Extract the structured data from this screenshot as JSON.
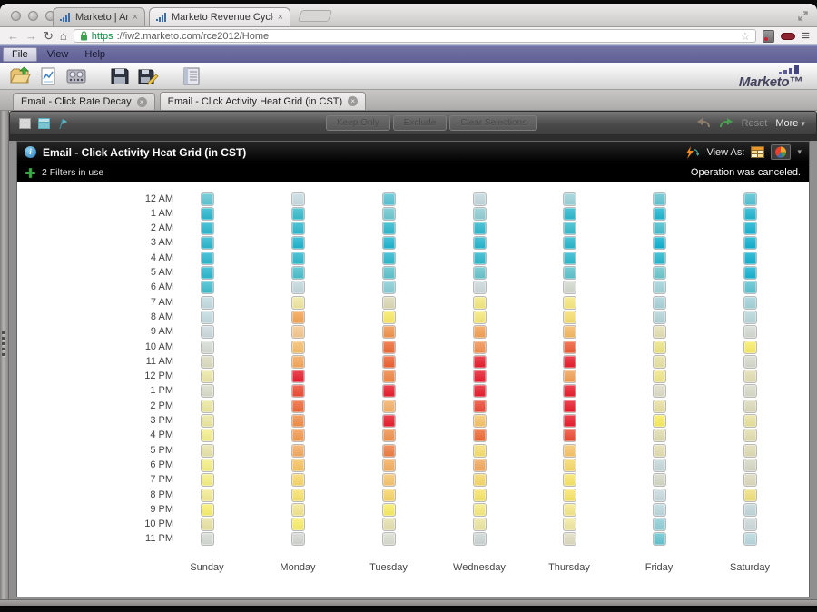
{
  "icons": {
    "back": "←",
    "forward": "→",
    "reload": "↻",
    "home": "⌂",
    "star": "☆",
    "hamburger": "≡",
    "tab_close": "×",
    "doc_close": "×",
    "chevron_down": "▾",
    "resize": "⤢",
    "info": "i"
  },
  "browser": {
    "tabs": [
      {
        "title": "Marketo | Analytics",
        "active": false
      },
      {
        "title": "Marketo Revenue Cycle Ex",
        "active": true
      }
    ],
    "address": {
      "scheme": "https",
      "rest": "://iw2.marketo.com/rce2012/Home"
    }
  },
  "menu_bar": {
    "items": [
      "File",
      "View",
      "Help"
    ]
  },
  "app_toolbar": {
    "brand": "Marketo™"
  },
  "doc_tabs": [
    {
      "label": "Email - Click Rate Decay",
      "active": false
    },
    {
      "label": "Email - Click Activity Heat Grid (in CST)",
      "active": true
    }
  ],
  "action_bar": {
    "disabled_buttons": [
      "Keep Only",
      "Exclude",
      "Clear Selections"
    ],
    "reset": "Reset",
    "more": "More"
  },
  "report": {
    "title": "Email - Click Activity Heat Grid (in CST)",
    "view_as": "View As:",
    "filters": "2 Filters in use",
    "status": "Operation was canceled."
  },
  "chart_data": {
    "type": "heatmap",
    "title": "Email - Click Activity Heat Grid (in CST)",
    "x_categories": [
      "Sunday",
      "Monday",
      "Tuesday",
      "Wednesday",
      "Thursday",
      "Friday",
      "Saturday"
    ],
    "y_categories": [
      "12 AM",
      "1 AM",
      "2 AM",
      "3 AM",
      "4 AM",
      "5 AM",
      "6 AM",
      "7 AM",
      "8 AM",
      "9 AM",
      "10 AM",
      "11 AM",
      "12 PM",
      "1 PM",
      "2 PM",
      "3 PM",
      "4 PM",
      "5 PM",
      "6 PM",
      "7 PM",
      "8 PM",
      "9 PM",
      "10 PM",
      "11 PM"
    ],
    "value_encoding": "color only; cyan = low click activity, yellow/orange = medium, red = high",
    "color_scale": {
      "low": "#0fb0d0",
      "mid": "#f8ec66",
      "high": "#e81c2c"
    },
    "legend_position": "none",
    "series": [
      {
        "name": "Sunday",
        "cell_colors": [
          "#5fc6d2",
          "#29b7cf",
          "#29b7cf",
          "#29b7cf",
          "#29b7cf",
          "#29b7cf",
          "#3fbdce",
          "#c3dbe0",
          "#c3dbe0",
          "#ccdadd",
          "#d6dcd4",
          "#dcdcc2",
          "#ebe7a6",
          "#dadcca",
          "#ece8a0",
          "#ece8a0",
          "#f4ee8c",
          "#e8e4aa",
          "#f5ef86",
          "#f5ef86",
          "#f3eb92",
          "#f8ef70",
          "#e7e2a2",
          "#d5dcd4"
        ]
      },
      {
        "name": "Monday",
        "cell_colors": [
          "#c7dce1",
          "#38bbcd",
          "#2bb8cd",
          "#1db4cf",
          "#2bb8cd",
          "#4abfcc",
          "#c2d8dc",
          "#efe7a0",
          "#f4a351",
          "#f5c78e",
          "#f6bf6c",
          "#f4a75a",
          "#e81c2c",
          "#ee4b33",
          "#ef6838",
          "#f28f48",
          "#f39950",
          "#f4ab60",
          "#f7c360",
          "#f8d86c",
          "#f8e26c",
          "#f3e68e",
          "#f8ed68",
          "#d4d6d2"
        ]
      },
      {
        "name": "Tuesday",
        "cell_colors": [
          "#58c3d3",
          "#6ec7cf",
          "#2bb8cd",
          "#1db4cf",
          "#2bb8cd",
          "#5cc2cc",
          "#86cdd4",
          "#dcd8b4",
          "#f8e962",
          "#f0934c",
          "#ee6a35",
          "#ed6131",
          "#f08542",
          "#e81c2c",
          "#f4b169",
          "#e81c2c",
          "#f0914c",
          "#ee7e42",
          "#f4ae5e",
          "#f6c470",
          "#f8d468",
          "#f8ec66",
          "#e4e0ae",
          "#d9ddd0"
        ]
      },
      {
        "name": "Wednesday",
        "cell_colors": [
          "#c2d8dd",
          "#90cdd3",
          "#2bb8cd",
          "#25b6cd",
          "#2bb8cd",
          "#68c4cc",
          "#ccd8da",
          "#f4e87e",
          "#f6e878",
          "#f3a052",
          "#f29150",
          "#e81c2c",
          "#e81c2c",
          "#e81c2c",
          "#ec4934",
          "#f6c468",
          "#ee6934",
          "#f6de6e",
          "#f2a85c",
          "#f6d86a",
          "#f8e468",
          "#f6ea7e",
          "#ece5a0",
          "#ccd6d4"
        ]
      },
      {
        "name": "Thursday",
        "cell_colors": [
          "#9ad2d8",
          "#2bb8cd",
          "#35bbcc",
          "#25b6cd",
          "#2bb8cd",
          "#5cc2cc",
          "#d2d8ce",
          "#f6e87e",
          "#f6de6e",
          "#f4b862",
          "#ee5c36",
          "#e81c2c",
          "#f0a054",
          "#e81c2c",
          "#e81c2c",
          "#e81c2c",
          "#ec4934",
          "#f6c468",
          "#f6d86a",
          "#f8e468",
          "#f8e468",
          "#f4e88a",
          "#f0e8a0",
          "#dedcc0"
        ]
      },
      {
        "name": "Friday",
        "cell_colors": [
          "#62c4d0",
          "#1db4cf",
          "#45bdcc",
          "#0fb0d0",
          "#25b6cd",
          "#6cc6cc",
          "#a0d2d8",
          "#a8d2d8",
          "#b2d4d8",
          "#e4dfb2",
          "#ece484",
          "#e8e2a2",
          "#f0e688",
          "#dcdcc6",
          "#e8e0a0",
          "#f8ec5e",
          "#e0dcae",
          "#e4deb0",
          "#c6d8da",
          "#d4d8c6",
          "#c8dade",
          "#bcd8de",
          "#90ced6",
          "#66c4d0"
        ]
      },
      {
        "name": "Saturday",
        "cell_colors": [
          "#52c2d2",
          "#1db4cf",
          "#15b2d0",
          "#0fb0d0",
          "#0fb0d0",
          "#15b2d0",
          "#5ac2d0",
          "#a2d2d8",
          "#b6d6da",
          "#d4dad2",
          "#f8ec66",
          "#d6d9cc",
          "#e2deb2",
          "#d8dbc8",
          "#dcdaba",
          "#e8e29c",
          "#e2deae",
          "#e0dcb4",
          "#d6d8c4",
          "#dcd9bc",
          "#f0e07c",
          "#c2d6da",
          "#ccd8da",
          "#b8d8de"
        ]
      }
    ]
  }
}
